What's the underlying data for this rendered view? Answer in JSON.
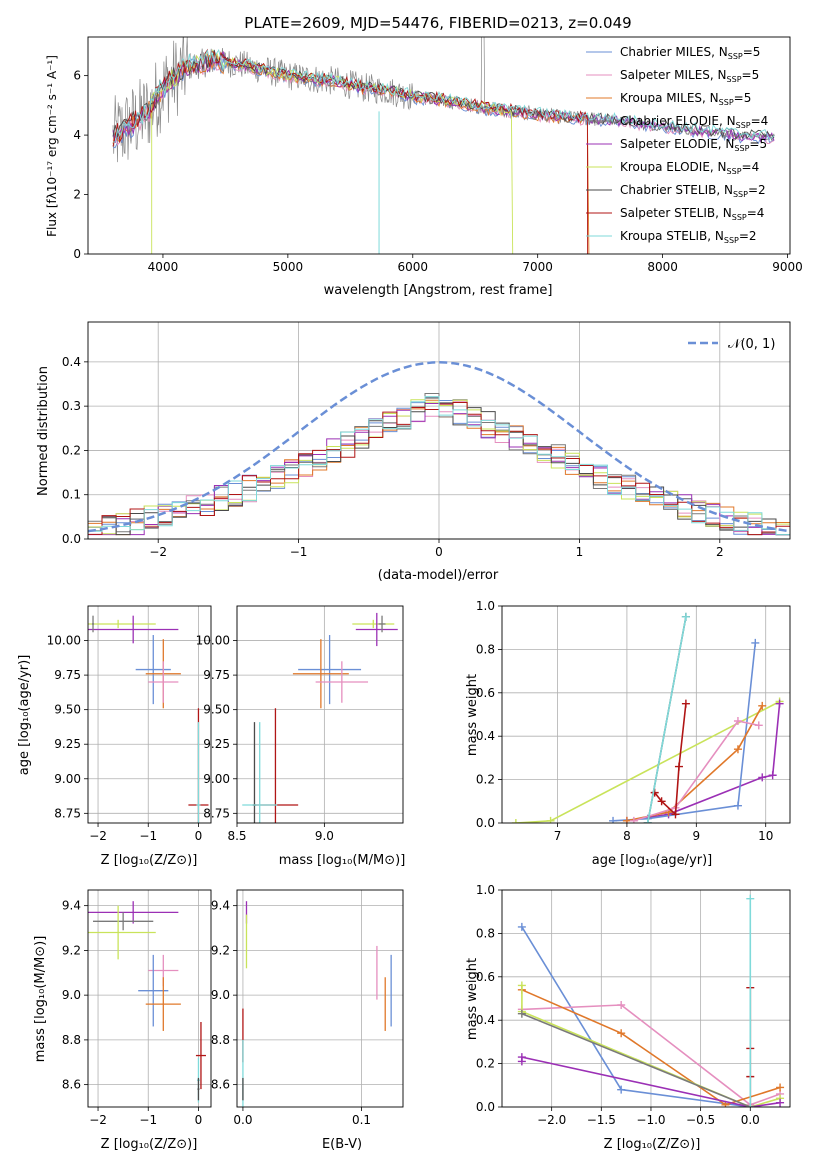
{
  "colors": {
    "chabrier_miles": "#6a8fd6",
    "salpeter_miles": "#e58fbf",
    "kroupa_miles": "#e0782a",
    "chabrier_elodie": "#7a7a7a",
    "salpeter_elodie": "#9b30b5",
    "kroupa_elodie": "#c9e35a",
    "chabrier_stelib": "#4a4a4a",
    "salpeter_stelib": "#b01515",
    "kroupa_stelib": "#7fdada",
    "data_spectrum": "#888888",
    "gaussian": "#6a8fd6",
    "grid": "#b0b0b0"
  },
  "chart_data": [
    {
      "id": "spectrum",
      "type": "line",
      "title": "PLATE=2609, MJD=54476, FIBERID=0213, z=0.049",
      "xlabel": "wavelength [Angstrom, rest frame]",
      "ylabel": "Flux [fλ10⁻¹⁷ erg cm⁻² s⁻¹ A⁻¹]",
      "xlim": [
        3400,
        9020
      ],
      "ylim": [
        0,
        7.3
      ],
      "xticks": [
        "4000",
        "5000",
        "6000",
        "7000",
        "8000",
        "9000"
      ],
      "xtick_values": [
        4000,
        5000,
        6000,
        7000,
        8000,
        9000
      ],
      "yticks": [
        "0",
        "2",
        "4",
        "6"
      ],
      "ytick_values": [
        0,
        2,
        4,
        6
      ],
      "grid": false,
      "legend_position": "top-right",
      "legend": [
        {
          "label": "Chabrier MILES, N",
          "sub": "SSP",
          "suffix": "=5",
          "color_key": "chabrier_miles"
        },
        {
          "label": "Salpeter MILES, N",
          "sub": "SSP",
          "suffix": "=5",
          "color_key": "salpeter_miles"
        },
        {
          "label": "Kroupa MILES, N",
          "sub": "SSP",
          "suffix": "=5",
          "color_key": "kroupa_miles"
        },
        {
          "label": "Chabrier ELODIE, N",
          "sub": "SSP",
          "suffix": "=4",
          "color_key": "chabrier_elodie"
        },
        {
          "label": "Salpeter ELODIE, N",
          "sub": "SSP",
          "suffix": "=5",
          "color_key": "salpeter_elodie"
        },
        {
          "label": "Kroupa ELODIE, N",
          "sub": "SSP",
          "suffix": "=4",
          "color_key": "kroupa_elodie"
        },
        {
          "label": "Chabrier STELIB, N",
          "sub": "SSP",
          "suffix": "=2",
          "color_key": "chabrier_stelib"
        },
        {
          "label": "Salpeter STELIB, N",
          "sub": "SSP",
          "suffix": "=4",
          "color_key": "salpeter_stelib"
        },
        {
          "label": "Kroupa STELIB, N",
          "sub": "SSP",
          "suffix": "=2",
          "color_key": "kroupa_stelib"
        }
      ],
      "continuum_model": {
        "wavelength": [
          3600,
          3700,
          3800,
          3900,
          4000,
          4200,
          4400,
          4600,
          4800,
          5000,
          5200,
          5400,
          5600,
          5800,
          6000,
          6200,
          6400,
          6600,
          6800,
          7000,
          7200,
          7400,
          7600,
          7800,
          8000,
          8200,
          8400,
          8600,
          8800
        ],
        "flux": [
          3.9,
          4.2,
          4.5,
          4.9,
          5.6,
          6.3,
          6.5,
          6.4,
          6.2,
          6.0,
          5.9,
          5.8,
          5.6,
          5.5,
          5.3,
          5.2,
          5.05,
          4.9,
          4.8,
          4.7,
          4.6,
          4.55,
          4.5,
          4.4,
          4.3,
          4.2,
          4.1,
          4.0,
          3.95
        ]
      },
      "model_cutoffs": {
        "kroupa_elodie": [
          3910,
          6800
        ],
        "kroupa_miles": [
          3600,
          7410
        ],
        "salpeter_stelib": [
          3600,
          7400
        ],
        "default": [
          3600,
          8900
        ]
      }
    },
    {
      "id": "residuals",
      "type": "step-histogram",
      "xlabel": "(data-model)/error",
      "ylabel": "Normed distribution",
      "xlim": [
        -2.5,
        2.5
      ],
      "ylim": [
        0,
        0.49
      ],
      "xticks": [
        "−2",
        "−1",
        "0",
        "1",
        "2"
      ],
      "xtick_values": [
        -2,
        -1,
        0,
        1,
        2
      ],
      "yticks": [
        "0.0",
        "0.1",
        "0.2",
        "0.3",
        "0.4"
      ],
      "ytick_values": [
        0,
        0.1,
        0.2,
        0.3,
        0.4
      ],
      "grid": true,
      "legend_position": "top-right",
      "legend_label": "𝒩(0, 1)",
      "bin_width": 0.1,
      "bin_start": -2.5,
      "envelope": [
        0.022,
        0.027,
        0.032,
        0.038,
        0.045,
        0.052,
        0.06,
        0.07,
        0.08,
        0.091,
        0.102,
        0.114,
        0.127,
        0.14,
        0.154,
        0.168,
        0.183,
        0.198,
        0.213,
        0.228,
        0.243,
        0.258,
        0.272,
        0.286,
        0.3,
        0.313,
        0.325,
        0.337,
        0.348,
        0.358,
        0.367,
        0.375,
        0.382,
        0.388,
        0.393,
        0.397,
        0.4,
        0.402,
        0.403,
        0.403,
        0.402,
        0.4,
        0.397,
        0.393,
        0.388,
        0.382,
        0.375,
        0.367,
        0.358,
        0.348
      ],
      "series_order": [
        "chabrier_miles",
        "salpeter_miles",
        "kroupa_miles",
        "chabrier_elodie",
        "salpeter_elodie",
        "kroupa_elodie",
        "chabrier_stelib",
        "salpeter_stelib",
        "kroupa_stelib"
      ]
    },
    {
      "id": "age_vs_Z",
      "type": "errorbar",
      "xlabel": "Z [log₁₀(Z/Z⊙)]",
      "ylabel": "age [log₁₀(age/yr)]",
      "xlim": [
        -2.2,
        0.25
      ],
      "ylim": [
        8.68,
        10.25
      ],
      "xticks": [
        "−2",
        "−1",
        "0"
      ],
      "xtick_values": [
        -2,
        -1,
        0
      ],
      "yticks": [
        "8.75",
        "9.00",
        "9.25",
        "9.50",
        "9.75",
        "10.00"
      ],
      "ytick_values": [
        8.75,
        9.0,
        9.25,
        9.5,
        9.75,
        10.0
      ],
      "grid": true,
      "points": [
        {
          "k": "kroupa_elodie",
          "x": -1.6,
          "xerr": 0.75,
          "y": 10.12,
          "yerr": 0.03
        },
        {
          "k": "salpeter_elodie",
          "x": -1.3,
          "xerr": 0.9,
          "y": 10.08,
          "yerr": 0.1
        },
        {
          "k": "chabrier_elodie",
          "x": -2.1,
          "xerr": 0.02,
          "y": 10.12,
          "yerr": 0.06
        },
        {
          "k": "chabrier_miles",
          "x": -0.9,
          "xerr": 0.35,
          "y": 9.79,
          "yerr": 0.25
        },
        {
          "k": "kroupa_miles",
          "x": -0.7,
          "xerr": 0.35,
          "y": 9.76,
          "yerr": 0.25
        },
        {
          "k": "salpeter_miles",
          "x": -0.7,
          "xerr": 0.3,
          "y": 9.7,
          "yerr": 0.15
        },
        {
          "k": "salpeter_stelib",
          "x": 0.0,
          "xerr": 0.2,
          "y": 8.81,
          "yerr": 0.7
        },
        {
          "k": "kroupa_stelib",
          "x": 0.0,
          "xerr": 0.04,
          "y": 8.81,
          "yerr": 0.6
        }
      ]
    },
    {
      "id": "age_vs_mass",
      "type": "errorbar",
      "xlabel": "mass [log₁₀(M/M⊙)]",
      "ylabel": "",
      "xlim": [
        8.5,
        9.45
      ],
      "ylim": [
        8.68,
        10.25
      ],
      "xticks": [
        "8.5",
        "9.0"
      ],
      "xtick_values": [
        8.5,
        9.0
      ],
      "yticks": [
        "8.75",
        "9.00",
        "9.25",
        "9.50",
        "9.75",
        "10.00"
      ],
      "ytick_values": [
        8.75,
        9.0,
        9.25,
        9.5,
        9.75,
        10.0
      ],
      "grid": true,
      "points": [
        {
          "k": "kroupa_elodie",
          "x": 9.28,
          "xerr": 0.12,
          "y": 10.12,
          "yerr": 0.03
        },
        {
          "k": "salpeter_elodie",
          "x": 9.3,
          "xerr": 0.12,
          "y": 10.08,
          "yerr": 0.12
        },
        {
          "k": "chabrier_elodie",
          "x": 9.33,
          "xerr": 0.02,
          "y": 10.12,
          "yerr": 0.06
        },
        {
          "k": "chabrier_miles",
          "x": 9.03,
          "xerr": 0.18,
          "y": 9.79,
          "yerr": 0.25
        },
        {
          "k": "kroupa_miles",
          "x": 8.98,
          "xerr": 0.16,
          "y": 9.76,
          "yerr": 0.25
        },
        {
          "k": "salpeter_miles",
          "x": 9.1,
          "xerr": 0.15,
          "y": 9.7,
          "yerr": 0.15
        },
        {
          "k": "salpeter_stelib",
          "x": 8.72,
          "xerr": 0.13,
          "y": 8.81,
          "yerr": 0.7
        },
        {
          "k": "chabrier_stelib",
          "x": 8.6,
          "xerr": 0.01,
          "y": 8.81,
          "yerr": 0.6
        },
        {
          "k": "kroupa_stelib",
          "x": 8.63,
          "xerr": 0.1,
          "y": 8.81,
          "yerr": 0.6
        }
      ]
    },
    {
      "id": "massweight_vs_age",
      "type": "line",
      "xlabel": "age [log₁₀(age/yr)]",
      "ylabel": "mass weight",
      "xlim": [
        6.2,
        10.35
      ],
      "ylim": [
        0,
        1.0
      ],
      "xticks": [
        "7",
        "8",
        "9",
        "10"
      ],
      "xtick_values": [
        7,
        8,
        9,
        10
      ],
      "yticks": [
        "0.0",
        "0.2",
        "0.4",
        "0.6",
        "0.8",
        "1.0"
      ],
      "ytick_values": [
        0,
        0.2,
        0.4,
        0.6,
        0.8,
        1.0
      ],
      "grid": true,
      "series": [
        {
          "k": "kroupa_elodie",
          "x": [
            6.4,
            6.9,
            10.2
          ],
          "y": [
            0.0,
            0.01,
            0.56
          ]
        },
        {
          "k": "salpeter_elodie",
          "x": [
            8.0,
            8.6,
            9.95,
            10.1,
            10.2
          ],
          "y": [
            0.01,
            0.04,
            0.21,
            0.22,
            0.55
          ]
        },
        {
          "k": "chabrier_miles",
          "x": [
            7.8,
            8.3,
            9.6,
            9.85
          ],
          "y": [
            0.01,
            0.02,
            0.08,
            0.83
          ]
        },
        {
          "k": "kroupa_miles",
          "x": [
            8.0,
            8.6,
            9.6,
            9.95
          ],
          "y": [
            0.01,
            0.05,
            0.34,
            0.54
          ]
        },
        {
          "k": "salpeter_miles",
          "x": [
            8.1,
            8.7,
            9.6,
            9.9
          ],
          "y": [
            0.01,
            0.07,
            0.47,
            0.45
          ]
        },
        {
          "k": "salpeter_stelib",
          "x": [
            8.4,
            8.5,
            8.7,
            8.75,
            8.85
          ],
          "y": [
            0.14,
            0.1,
            0.04,
            0.26,
            0.55
          ]
        },
        {
          "k": "chabrier_stelib",
          "x": [
            8.3,
            8.85
          ],
          "y": [
            0.0,
            0.95
          ]
        },
        {
          "k": "kroupa_stelib",
          "x": [
            8.3,
            8.85
          ],
          "y": [
            0.0,
            0.95
          ]
        }
      ]
    },
    {
      "id": "mass_vs_Z",
      "type": "errorbar",
      "xlabel": "Z [log₁₀(Z/Z⊙)]",
      "ylabel": "mass [log₁₀(M/M⊙)]",
      "xlim": [
        -2.2,
        0.25
      ],
      "ylim": [
        8.5,
        9.47
      ],
      "xticks": [
        "−2",
        "−1",
        "0"
      ],
      "xtick_values": [
        -2,
        -1,
        0
      ],
      "yticks": [
        "8.6",
        "8.8",
        "9.0",
        "9.2",
        "9.4"
      ],
      "ytick_values": [
        8.6,
        8.8,
        9.0,
        9.2,
        9.4
      ],
      "grid": true,
      "points": [
        {
          "k": "salpeter_elodie",
          "x": -1.3,
          "xerr": 0.9,
          "y": 9.37,
          "yerr": 0.05
        },
        {
          "k": "chabrier_elodie",
          "x": -1.5,
          "xerr": 0.6,
          "y": 9.33,
          "yerr": 0.04
        },
        {
          "k": "kroupa_elodie",
          "x": -1.6,
          "xerr": 0.75,
          "y": 9.28,
          "yerr": 0.12
        },
        {
          "k": "salpeter_miles",
          "x": -0.7,
          "xerr": 0.3,
          "y": 9.11,
          "yerr": 0.07
        },
        {
          "k": "chabrier_miles",
          "x": -0.9,
          "xerr": 0.3,
          "y": 9.02,
          "yerr": 0.16
        },
        {
          "k": "kroupa_miles",
          "x": -0.7,
          "xerr": 0.35,
          "y": 8.96,
          "yerr": 0.12
        },
        {
          "k": "salpeter_stelib",
          "x": 0.05,
          "xerr": 0.1,
          "y": 8.73,
          "yerr": 0.15
        },
        {
          "k": "kroupa_stelib",
          "x": 0.0,
          "xerr": 0.03,
          "y": 8.62,
          "yerr": 0.1
        },
        {
          "k": "chabrier_stelib",
          "x": 0.0,
          "xerr": 0.02,
          "y": 8.58,
          "yerr": 0.05
        }
      ]
    },
    {
      "id": "mass_vs_ebv",
      "type": "errorbar",
      "xlabel": "E(B-V)",
      "ylabel": "",
      "xlim": [
        -0.005,
        0.135
      ],
      "ylim": [
        8.5,
        9.47
      ],
      "xticks": [
        "0.0",
        "0.1"
      ],
      "xtick_values": [
        0.0,
        0.1
      ],
      "yticks": [
        "8.6",
        "8.8",
        "9.0",
        "9.2",
        "9.4"
      ],
      "ytick_values": [
        8.6,
        8.8,
        9.0,
        9.2,
        9.4
      ],
      "grid": true,
      "points": [
        {
          "k": "salpeter_elodie",
          "x": 0.003,
          "xerr": 0.0,
          "y": 9.37,
          "yerr": 0.05
        },
        {
          "k": "kroupa_elodie",
          "x": 0.003,
          "xerr": 0.0,
          "y": 9.24,
          "yerr": 0.12
        },
        {
          "k": "salpeter_miles",
          "x": 0.113,
          "xerr": 0.0,
          "y": 9.1,
          "yerr": 0.12
        },
        {
          "k": "chabrier_miles",
          "x": 0.125,
          "xerr": 0.0,
          "y": 9.02,
          "yerr": 0.16
        },
        {
          "k": "kroupa_miles",
          "x": 0.12,
          "xerr": 0.0,
          "y": 8.96,
          "yerr": 0.12
        },
        {
          "k": "salpeter_stelib",
          "x": 0.0,
          "xerr": 0.0,
          "y": 8.82,
          "yerr": 0.12
        },
        {
          "k": "kroupa_stelib",
          "x": 0.0,
          "xerr": 0.0,
          "y": 8.6,
          "yerr": 0.2
        },
        {
          "k": "chabrier_stelib",
          "x": 0.0,
          "xerr": 0.0,
          "y": 8.58,
          "yerr": 0.05
        }
      ]
    },
    {
      "id": "massweight_vs_Z",
      "type": "line",
      "xlabel": "Z [log₁₀(Z/Z⊙)]",
      "ylabel": "mass weight",
      "xlim": [
        -2.5,
        0.4
      ],
      "ylim": [
        0,
        1.0
      ],
      "xticks": [
        "−2.0",
        "−1.5",
        "−1.0",
        "−0.5",
        "0.0"
      ],
      "xtick_values": [
        -2.0,
        -1.5,
        -1.0,
        -0.5,
        0.0
      ],
      "yticks": [
        "0.0",
        "0.2",
        "0.4",
        "0.6",
        "0.8",
        "1.0"
      ],
      "ytick_values": [
        0,
        0.2,
        0.4,
        0.6,
        0.8,
        1.0
      ],
      "grid": true,
      "series": [
        {
          "k": "chabrier_miles",
          "x": [
            -2.3,
            -1.3,
            0.0
          ],
          "y": [
            0.83,
            0.08,
            0.0
          ]
        },
        {
          "k": "salpeter_miles",
          "x": [
            -2.3,
            -1.3,
            0.0,
            0.3
          ],
          "y": [
            0.45,
            0.47,
            0.01,
            0.06
          ]
        },
        {
          "k": "kroupa_miles",
          "x": [
            -2.3,
            -1.3,
            -0.25,
            0.3
          ],
          "y": [
            0.54,
            0.34,
            0.01,
            0.09
          ]
        },
        {
          "k": "kroupa_elodie",
          "x": [
            -2.3,
            -2.3,
            0.0,
            0.3
          ],
          "y": [
            0.56,
            0.44,
            0.0,
            0.04
          ]
        },
        {
          "k": "salpeter_elodie",
          "x": [
            -2.3,
            -2.3,
            0.0,
            0.3
          ],
          "y": [
            0.21,
            0.23,
            0.0,
            0.02
          ]
        },
        {
          "k": "chabrier_elodie",
          "x": [
            -2.3,
            0.0
          ],
          "y": [
            0.43,
            0.0
          ]
        },
        {
          "k": "salpeter_stelib",
          "x": [
            0.0,
            0.0,
            0.0,
            0.0
          ],
          "y": [
            0.0,
            0.14,
            0.27,
            0.55
          ]
        },
        {
          "k": "kroupa_stelib",
          "x": [
            0.0,
            0.0
          ],
          "y": [
            0.0,
            0.96
          ]
        }
      ]
    }
  ]
}
